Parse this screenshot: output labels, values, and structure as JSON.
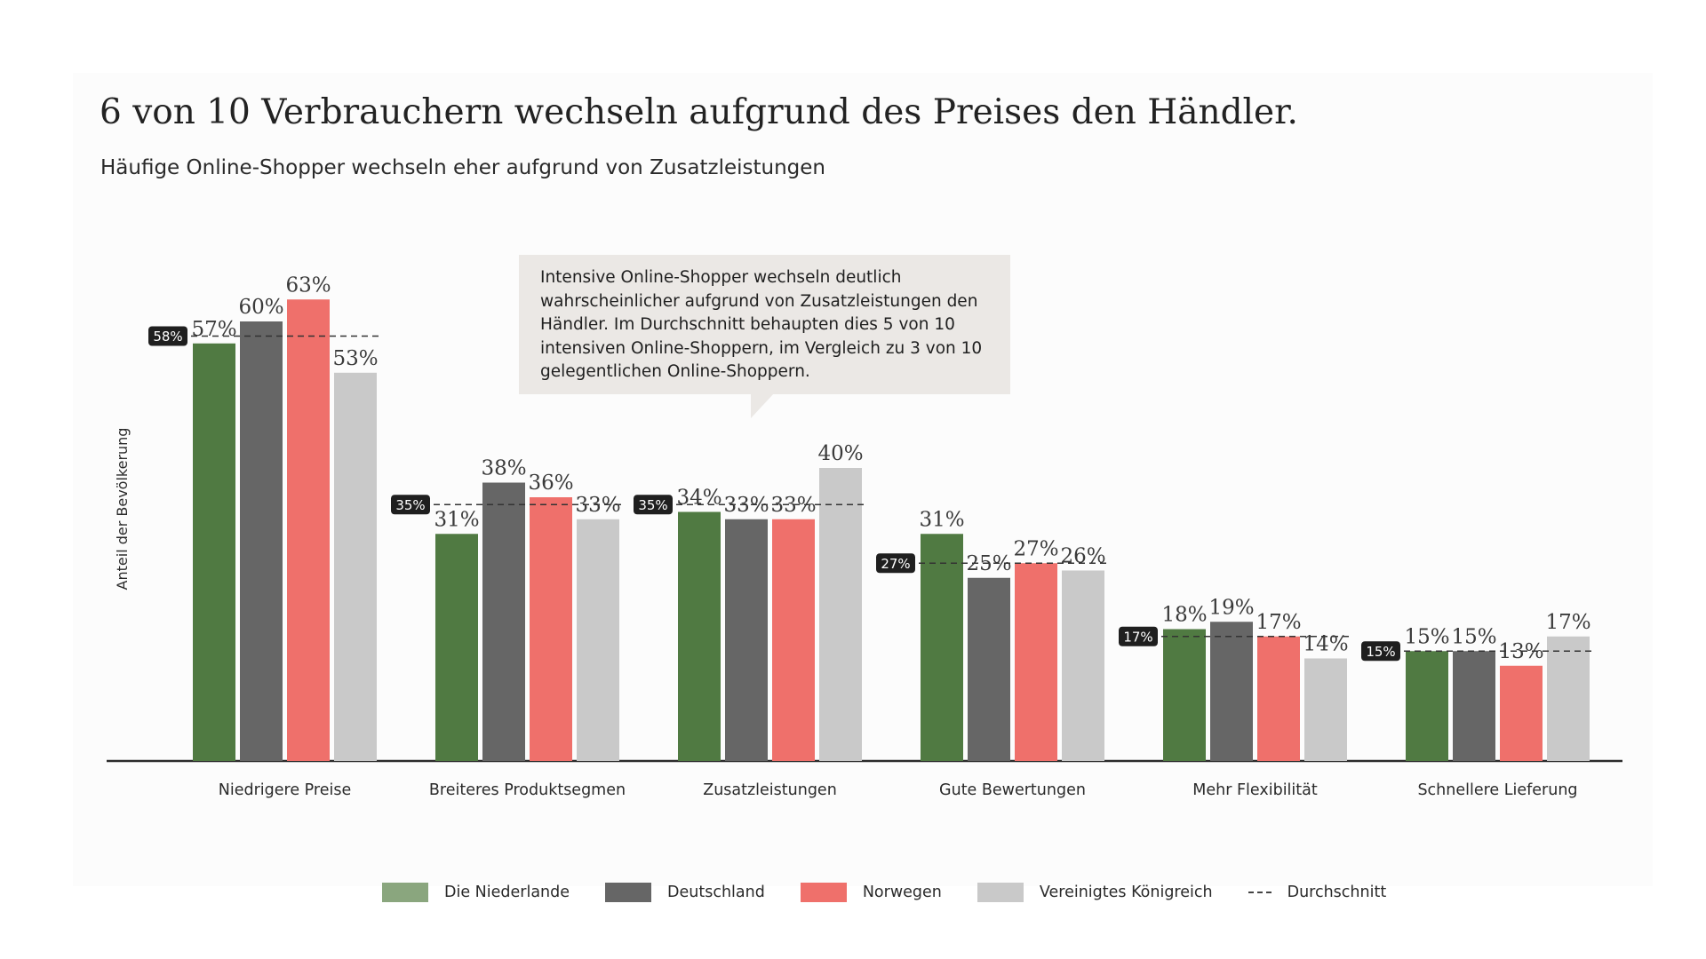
{
  "page": {
    "title": "6 von 10 Verbrauchern wechseln aufgrund des Preises den Händler.",
    "subtitle": "Häufige Online-Shopper wechseln eher aufgrund von Zusatzleistungen",
    "callout": "Intensive Online-Shopper wechseln deutlich wahrscheinlicher aufgrund von Zusatzleistungen den Händler. Im Durchschnitt behaupten dies 5 von 10 intensiven Online-Shoppern, im Vergleich zu 3 von 10 gelegentlichen Online-Shoppern."
  },
  "legend": {
    "items": [
      {
        "label": "Die Niederlande",
        "color": "#8aa67e"
      },
      {
        "label": "Deutschland",
        "color": "#666666"
      },
      {
        "label": "Norwegen",
        "color": "#ef706b"
      },
      {
        "label": "Vereinigtes Königreich",
        "color": "#c9c9c9"
      }
    ],
    "average_label": "Durchschnitt"
  },
  "chart_data": {
    "type": "bar",
    "title": "6 von 10 Verbrauchern wechseln aufgrund des Preises den Händler.",
    "subtitle": "Häufige Online-Shopper wechseln eher aufgrund von Zusatzleistungen",
    "ylabel": "Anteil der Bevölkerung",
    "xlabel": "",
    "ylim": [
      0,
      65
    ],
    "grid": false,
    "legend_position": "bottom",
    "categories": [
      "Niedrigere Preise",
      "Breiteres Produktsegmen",
      "Zusatzleistungen",
      "Gute Bewertungen",
      "Mehr Flexibilität",
      "Schnellere Lieferung"
    ],
    "series": [
      {
        "name": "Die Niederlande",
        "color": "#507a42",
        "values": [
          57,
          31,
          34,
          31,
          18,
          15
        ]
      },
      {
        "name": "Deutschland",
        "color": "#666666",
        "values": [
          60,
          38,
          33,
          25,
          19,
          15
        ]
      },
      {
        "name": "Norwegen",
        "color": "#ef706b",
        "values": [
          63,
          36,
          33,
          27,
          17,
          13
        ]
      },
      {
        "name": "Vereinigtes Königreich",
        "color": "#c9c9c9",
        "values": [
          53,
          33,
          40,
          26,
          14,
          17
        ]
      }
    ],
    "averages": {
      "name": "Durchschnitt",
      "values": [
        58,
        35,
        35,
        27,
        17,
        15
      ],
      "labels": [
        "58%",
        "35%",
        "35%",
        "27%",
        "17%",
        "15%"
      ]
    },
    "value_labels": [
      [
        "57%",
        "60%",
        "63%",
        "53%"
      ],
      [
        "31%",
        "38%",
        "36%",
        "33%"
      ],
      [
        "34%",
        "33%",
        "33%",
        "40%"
      ],
      [
        "31%",
        "25%",
        "27%",
        "26%"
      ],
      [
        "18%",
        "19%",
        "17%",
        "14%"
      ],
      [
        "15%",
        "15%",
        "13%",
        "17%"
      ]
    ]
  }
}
